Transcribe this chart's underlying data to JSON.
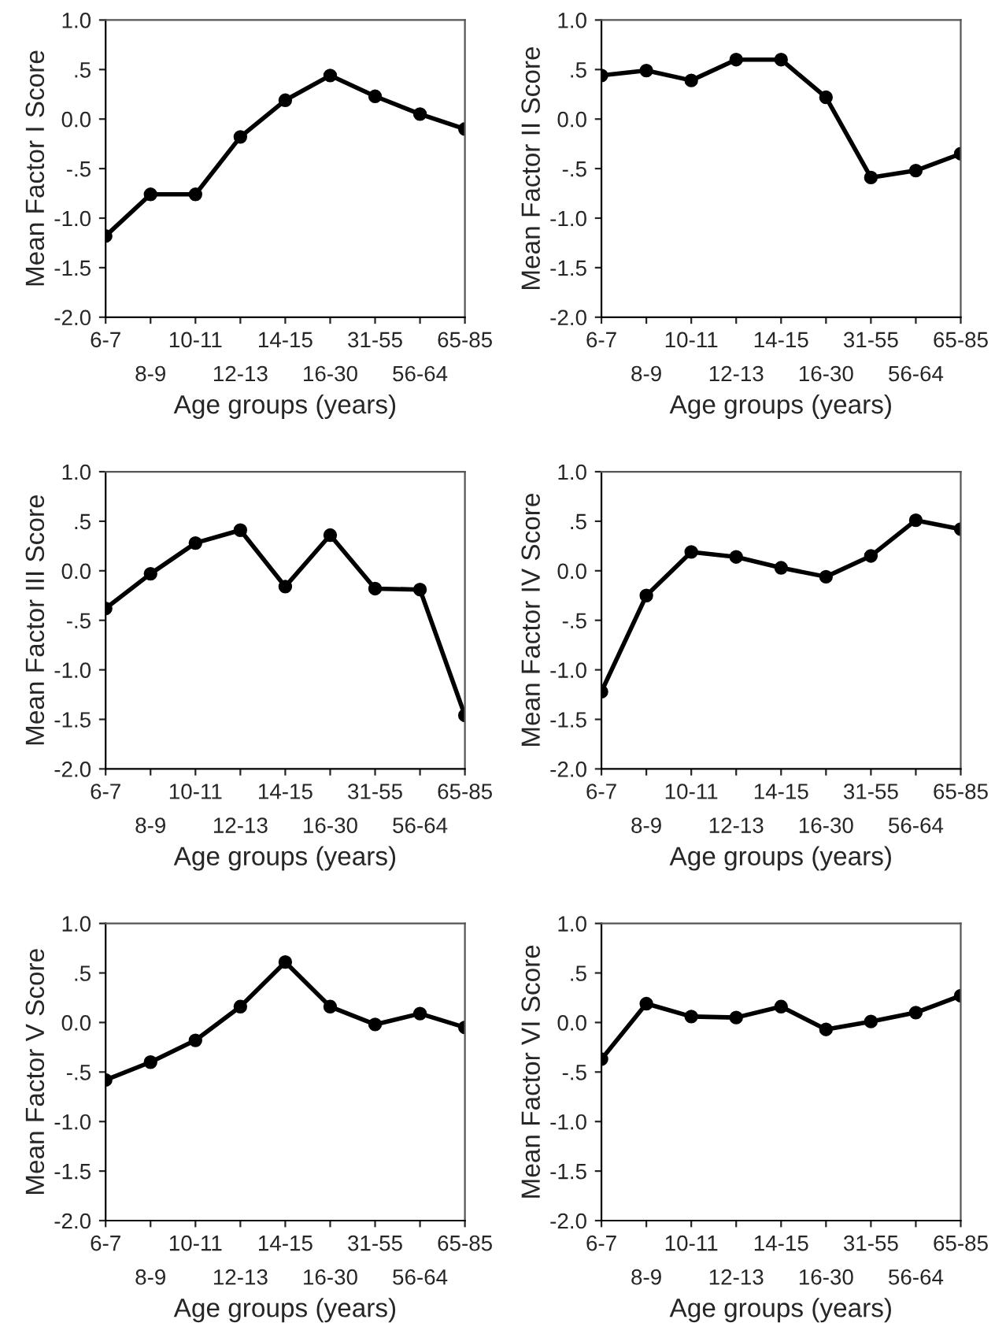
{
  "chart_data": [
    {
      "type": "line",
      "xlabel": "Age groups (years)",
      "ylabel": "Mean Factor I Score",
      "categories": [
        "6-7",
        "8-9",
        "10-11",
        "12-13",
        "14-15",
        "16-30",
        "31-55",
        "56-64",
        "65-85"
      ],
      "series": [
        {
          "color": "#000000",
          "values": [
            -1.18,
            -0.76,
            -0.76,
            -0.18,
            0.19,
            0.44,
            0.23,
            0.05,
            -0.1
          ]
        }
      ],
      "ylim": [
        -2.0,
        1.0
      ],
      "yticks": [
        {
          "value": -2.0,
          "label": "-2.0"
        },
        {
          "value": -1.5,
          "label": "-1.5"
        },
        {
          "value": -1.0,
          "label": "-1.0"
        },
        {
          "value": -0.5,
          "label": "-.5"
        },
        {
          "value": 0.0,
          "label": "0.0"
        },
        {
          "value": 0.5,
          "label": ".5"
        },
        {
          "value": 1.0,
          "label": "1.0"
        }
      ],
      "grid": false,
      "marker": "circle",
      "line_style": "solid"
    },
    {
      "type": "line",
      "xlabel": "Age groups (years)",
      "ylabel": "Mean Factor II Score",
      "categories": [
        "6-7",
        "8-9",
        "10-11",
        "12-13",
        "14-15",
        "16-30",
        "31-55",
        "56-64",
        "65-85"
      ],
      "series": [
        {
          "color": "#000000",
          "values": [
            0.44,
            0.49,
            0.39,
            0.6,
            0.6,
            0.22,
            -0.59,
            -0.52,
            -0.35
          ]
        }
      ],
      "ylim": [
        -2.0,
        1.0
      ],
      "yticks": [
        {
          "value": -2.0,
          "label": "-2.0"
        },
        {
          "value": -1.5,
          "label": "-1.5"
        },
        {
          "value": -1.0,
          "label": "-1.0"
        },
        {
          "value": -0.5,
          "label": "-.5"
        },
        {
          "value": 0.0,
          "label": "0.0"
        },
        {
          "value": 0.5,
          "label": ".5"
        },
        {
          "value": 1.0,
          "label": "1.0"
        }
      ],
      "grid": false,
      "marker": "circle",
      "line_style": "solid"
    },
    {
      "type": "line",
      "xlabel": "Age groups (years)",
      "ylabel": "Mean Factor III Score",
      "categories": [
        "6-7",
        "8-9",
        "10-11",
        "12-13",
        "14-15",
        "16-30",
        "31-55",
        "56-64",
        "65-85"
      ],
      "series": [
        {
          "color": "#000000",
          "values": [
            -0.38,
            -0.03,
            0.28,
            0.41,
            -0.16,
            0.36,
            -0.18,
            -0.19,
            -1.46
          ]
        }
      ],
      "ylim": [
        -2.0,
        1.0
      ],
      "yticks": [
        {
          "value": -2.0,
          "label": "-2.0"
        },
        {
          "value": -1.5,
          "label": "-1.5"
        },
        {
          "value": -1.0,
          "label": "-1.0"
        },
        {
          "value": -0.5,
          "label": "-.5"
        },
        {
          "value": 0.0,
          "label": "0.0"
        },
        {
          "value": 0.5,
          "label": ".5"
        },
        {
          "value": 1.0,
          "label": "1.0"
        }
      ],
      "grid": false,
      "marker": "circle",
      "line_style": "solid"
    },
    {
      "type": "line",
      "xlabel": "Age groups (years)",
      "ylabel": "Mean Factor IV Score",
      "categories": [
        "6-7",
        "8-9",
        "10-11",
        "12-13",
        "14-15",
        "16-30",
        "31-55",
        "56-64",
        "65-85"
      ],
      "series": [
        {
          "color": "#000000",
          "values": [
            -1.22,
            -0.25,
            0.19,
            0.14,
            0.03,
            -0.06,
            0.15,
            0.51,
            0.42
          ]
        }
      ],
      "ylim": [
        -2.0,
        1.0
      ],
      "yticks": [
        {
          "value": -2.0,
          "label": "-2.0"
        },
        {
          "value": -1.5,
          "label": "-1.5"
        },
        {
          "value": -1.0,
          "label": "-1.0"
        },
        {
          "value": -0.5,
          "label": "-.5"
        },
        {
          "value": 0.0,
          "label": "0.0"
        },
        {
          "value": 0.5,
          "label": ".5"
        },
        {
          "value": 1.0,
          "label": "1.0"
        }
      ],
      "grid": false,
      "marker": "circle",
      "line_style": "solid"
    },
    {
      "type": "line",
      "xlabel": "Age groups (years)",
      "ylabel": "Mean Factor V Score",
      "categories": [
        "6-7",
        "8-9",
        "10-11",
        "12-13",
        "14-15",
        "16-30",
        "31-55",
        "56-64",
        "65-85"
      ],
      "series": [
        {
          "color": "#000000",
          "values": [
            -0.58,
            -0.4,
            -0.18,
            0.16,
            0.61,
            0.16,
            -0.02,
            0.09,
            -0.05
          ]
        }
      ],
      "ylim": [
        -2.0,
        1.0
      ],
      "yticks": [
        {
          "value": -2.0,
          "label": "-2.0"
        },
        {
          "value": -1.5,
          "label": "-1.5"
        },
        {
          "value": -1.0,
          "label": "-1.0"
        },
        {
          "value": -0.5,
          "label": "-.5"
        },
        {
          "value": 0.0,
          "label": "0.0"
        },
        {
          "value": 0.5,
          "label": ".5"
        },
        {
          "value": 1.0,
          "label": "1.0"
        }
      ],
      "grid": false,
      "marker": "circle",
      "line_style": "solid"
    },
    {
      "type": "line",
      "xlabel": "Age groups (years)",
      "ylabel": "Mean Factor VI Score",
      "categories": [
        "6-7",
        "8-9",
        "10-11",
        "12-13",
        "14-15",
        "16-30",
        "31-55",
        "56-64",
        "65-85"
      ],
      "series": [
        {
          "color": "#000000",
          "values": [
            -0.37,
            0.19,
            0.06,
            0.05,
            0.16,
            -0.07,
            0.01,
            0.1,
            0.27
          ]
        }
      ],
      "ylim": [
        -2.0,
        1.0
      ],
      "yticks": [
        {
          "value": -2.0,
          "label": "-2.0"
        },
        {
          "value": -1.5,
          "label": "-1.5"
        },
        {
          "value": -1.0,
          "label": "-1.0"
        },
        {
          "value": -0.5,
          "label": "-.5"
        },
        {
          "value": 0.0,
          "label": "0.0"
        },
        {
          "value": 0.5,
          "label": ".5"
        },
        {
          "value": 1.0,
          "label": "1.0"
        }
      ],
      "grid": false,
      "marker": "circle",
      "line_style": "solid"
    }
  ]
}
